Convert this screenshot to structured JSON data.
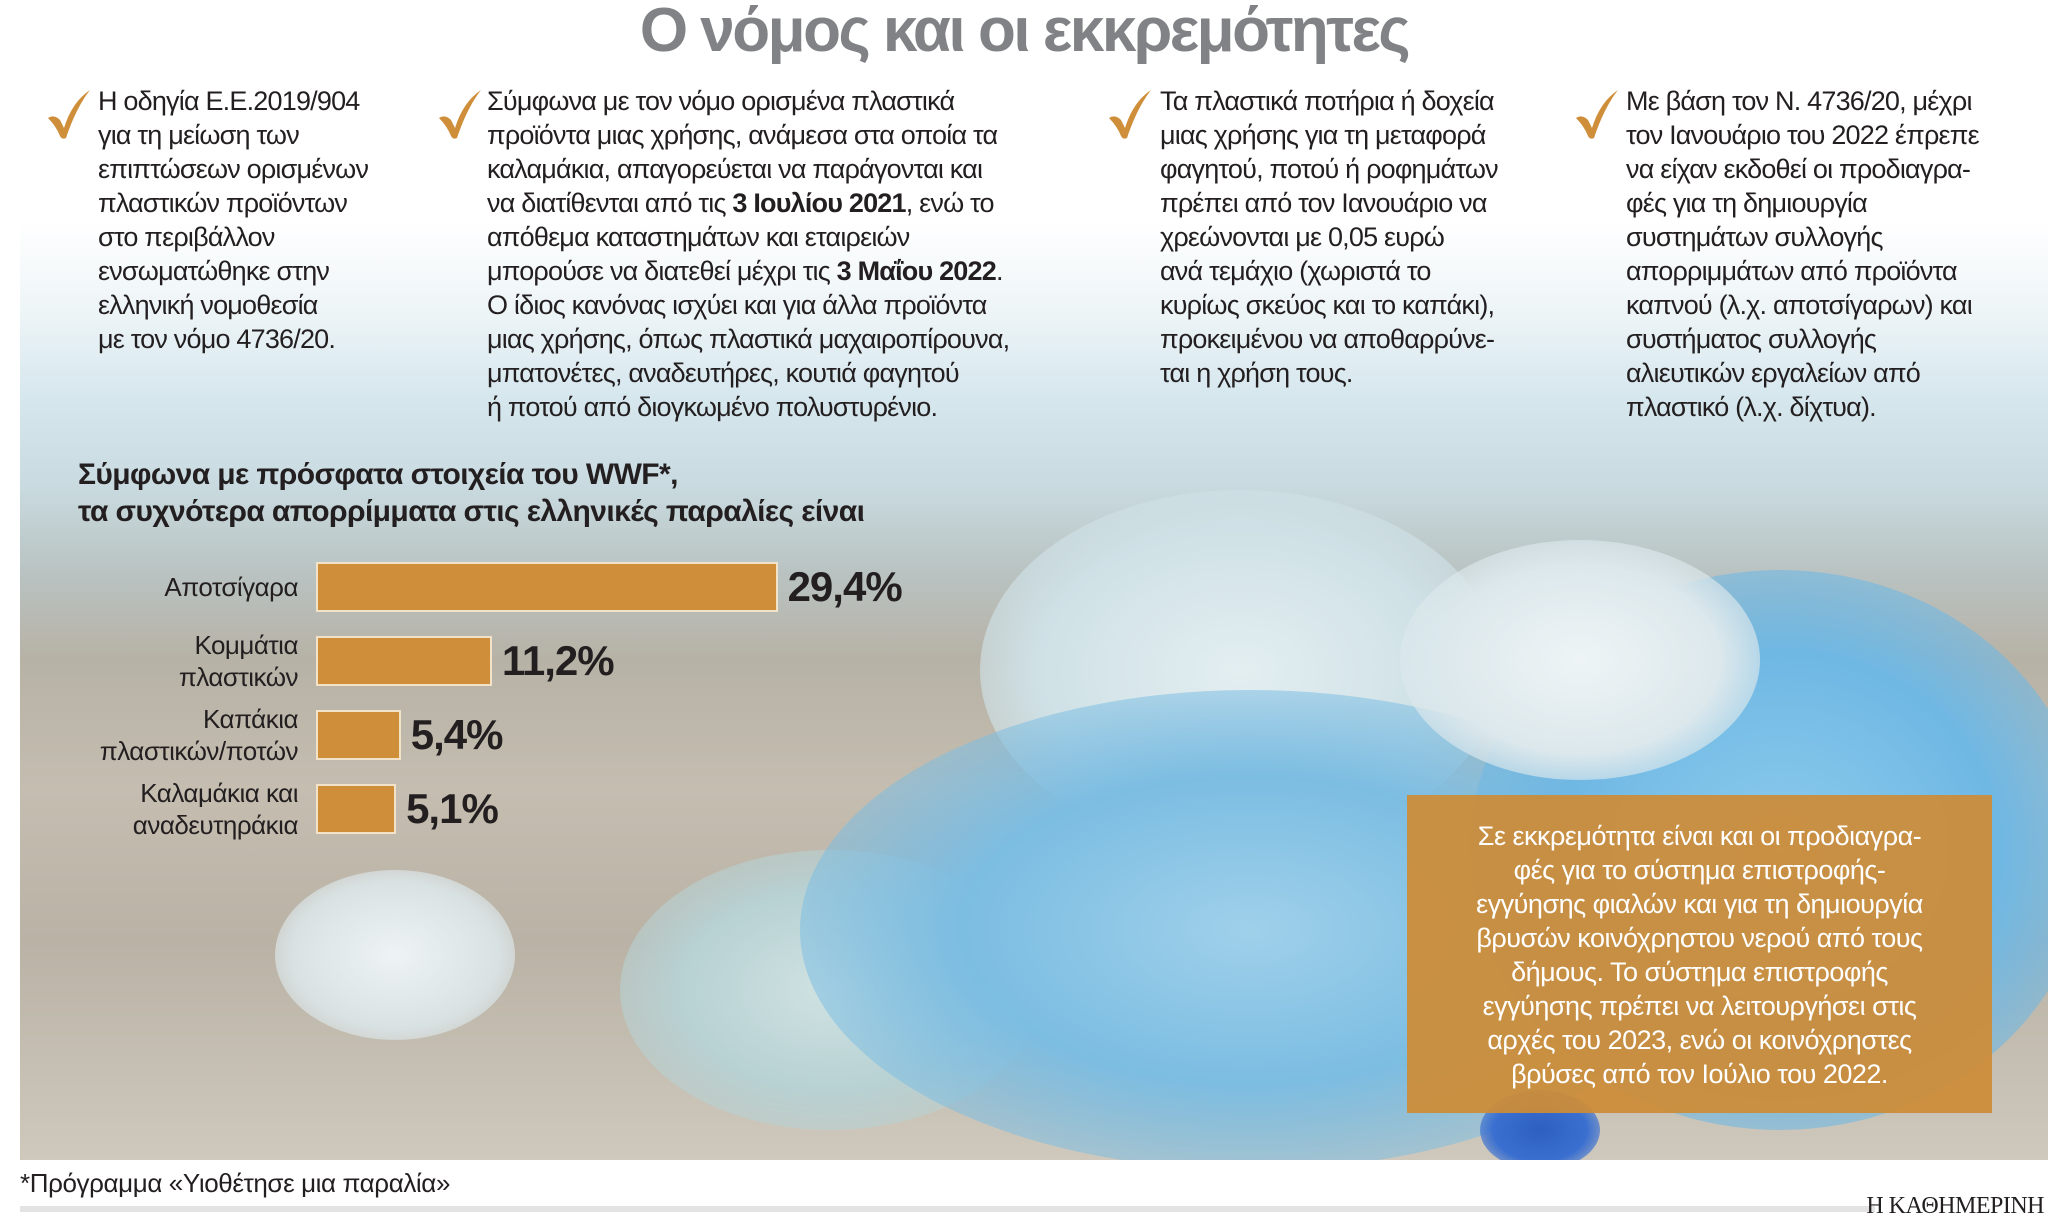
{
  "title": "Ο νόμος και οι εκκρεμότητες",
  "accent_color": "#cf8f3a",
  "icon": "checkmark-icon",
  "columns": [
    {
      "lines": [
        [
          [
            "Η οδηγία Ε.Ε.2019/904",
            0
          ]
        ],
        [
          [
            "για τη μείωση των",
            0
          ]
        ],
        [
          [
            "επιπτώσεων ορισμένων",
            0
          ]
        ],
        [
          [
            "πλαστικών προϊόντων",
            0
          ]
        ],
        [
          [
            "στο περιβάλλον",
            0
          ]
        ],
        [
          [
            "ενσωματώθηκε στην",
            0
          ]
        ],
        [
          [
            "ελληνική νομοθεσία",
            0
          ]
        ],
        [
          [
            "με τον νόμο 4736/20.",
            0
          ]
        ]
      ]
    },
    {
      "lines": [
        [
          [
            "Σύμφωνα με τον νόμο ορισμένα πλαστικά",
            0
          ]
        ],
        [
          [
            "προϊόντα μιας χρήσης, ανάμεσα στα οποία τα",
            0
          ]
        ],
        [
          [
            "καλαμάκια, απαγορεύεται να παράγονται και",
            0
          ]
        ],
        [
          [
            "να διατίθενται από τις ",
            0
          ],
          [
            "3 Ιουλίου 2021",
            1
          ],
          [
            ", ενώ το",
            0
          ]
        ],
        [
          [
            "απόθεμα καταστημάτων και εταιρειών",
            0
          ]
        ],
        [
          [
            "μπορούσε να διατεθεί μέχρι τις ",
            0
          ],
          [
            "3 Μαΐου 2022",
            1
          ],
          [
            ".",
            0
          ]
        ],
        [
          [
            "Ο ίδιος κανόνας ισχύει και για άλλα προϊόντα",
            0
          ]
        ],
        [
          [
            "μιας χρήσης, όπως πλαστικά μαχαιροπίρουνα,",
            0
          ]
        ],
        [
          [
            "μπατονέτες, αναδευτήρες, κουτιά φαγητού",
            0
          ]
        ],
        [
          [
            "ή ποτού από διογκωμένο πολυστυρένιο.",
            0
          ]
        ]
      ]
    },
    {
      "lines": [
        [
          [
            "Τα πλαστικά ποτήρια ή δοχεία",
            0
          ]
        ],
        [
          [
            "μιας χρήσης για τη μεταφορά",
            0
          ]
        ],
        [
          [
            "φαγητού, ποτού ή ροφημάτων",
            0
          ]
        ],
        [
          [
            "πρέπει από τον Ιανουάριο να",
            0
          ]
        ],
        [
          [
            "χρεώνονται με 0,05 ευρώ",
            0
          ]
        ],
        [
          [
            "ανά τεμάχιο (χωριστά το",
            0
          ]
        ],
        [
          [
            "κυρίως σκεύος και το καπάκι),",
            0
          ]
        ],
        [
          [
            "προκειμένου να αποθαρρύνε-",
            0
          ]
        ],
        [
          [
            "ται η χρήση τους.",
            0
          ]
        ]
      ]
    },
    {
      "lines": [
        [
          [
            "Με βάση τον Ν. 4736/20, μέχρι",
            0
          ]
        ],
        [
          [
            "τον Ιανουάριο του 2022 έπρεπε",
            0
          ]
        ],
        [
          [
            "να είχαν εκδοθεί οι προδιαγρα-",
            0
          ]
        ],
        [
          [
            "φές για τη δημιουργία",
            0
          ]
        ],
        [
          [
            "συστημάτων συλλογής",
            0
          ]
        ],
        [
          [
            "απορριμμάτων από προϊόντα",
            0
          ]
        ],
        [
          [
            "καπνού (λ.χ. αποτσίγαρων) και",
            0
          ]
        ],
        [
          [
            "συστήματος συλλογής",
            0
          ]
        ],
        [
          [
            "αλιευτικών εργαλείων από",
            0
          ]
        ],
        [
          [
            "πλαστικό (λ.χ. δίχτυα).",
            0
          ]
        ]
      ]
    }
  ],
  "chart_data": {
    "type": "bar",
    "orientation": "horizontal",
    "title_lines": [
      "Σύμφωνα με πρόσφατα στοιχεία του WWF*,",
      "τα συχνότερα απορρίμματα στις ελληνικές παραλίες είναι"
    ],
    "categories": [
      [
        "Αποτσίγαρα"
      ],
      [
        "Κομμάτια",
        "πλαστικών"
      ],
      [
        "Καπάκια",
        "πλαστικών/ποτών"
      ],
      [
        "Καλαμάκια και",
        "αναδευτηράκια"
      ]
    ],
    "values": [
      29.4,
      11.2,
      5.4,
      5.1
    ],
    "value_labels": [
      "29,4%",
      "11,2%",
      "5,4%",
      "5,1%"
    ],
    "unit": "%",
    "bar_color": "#cf8f3a",
    "grid": false
  },
  "callout": {
    "lines": [
      "Σε εκκρεμότητα είναι και οι προδιαγρα-",
      "φές για το σύστημα επιστροφής-",
      "εγγύησης φιαλών και για τη δημιουργία",
      "βρυσών κοινόχρηστου νερού από τους",
      "δήμους. Το σύστημα επιστροφής",
      "εγγύησης πρέπει να λειτουργήσει στις",
      "αρχές του 2023, ενώ οι κοινόχρηστες",
      "βρύσες από τον Ιούλιο του 2022."
    ],
    "color": "#cd8c37"
  },
  "footnote": "*Πρόγραμμα «Υιοθέτησε μια παραλία»",
  "brand": "Η ΚΑΘΗΜΕΡΙΝΗ"
}
